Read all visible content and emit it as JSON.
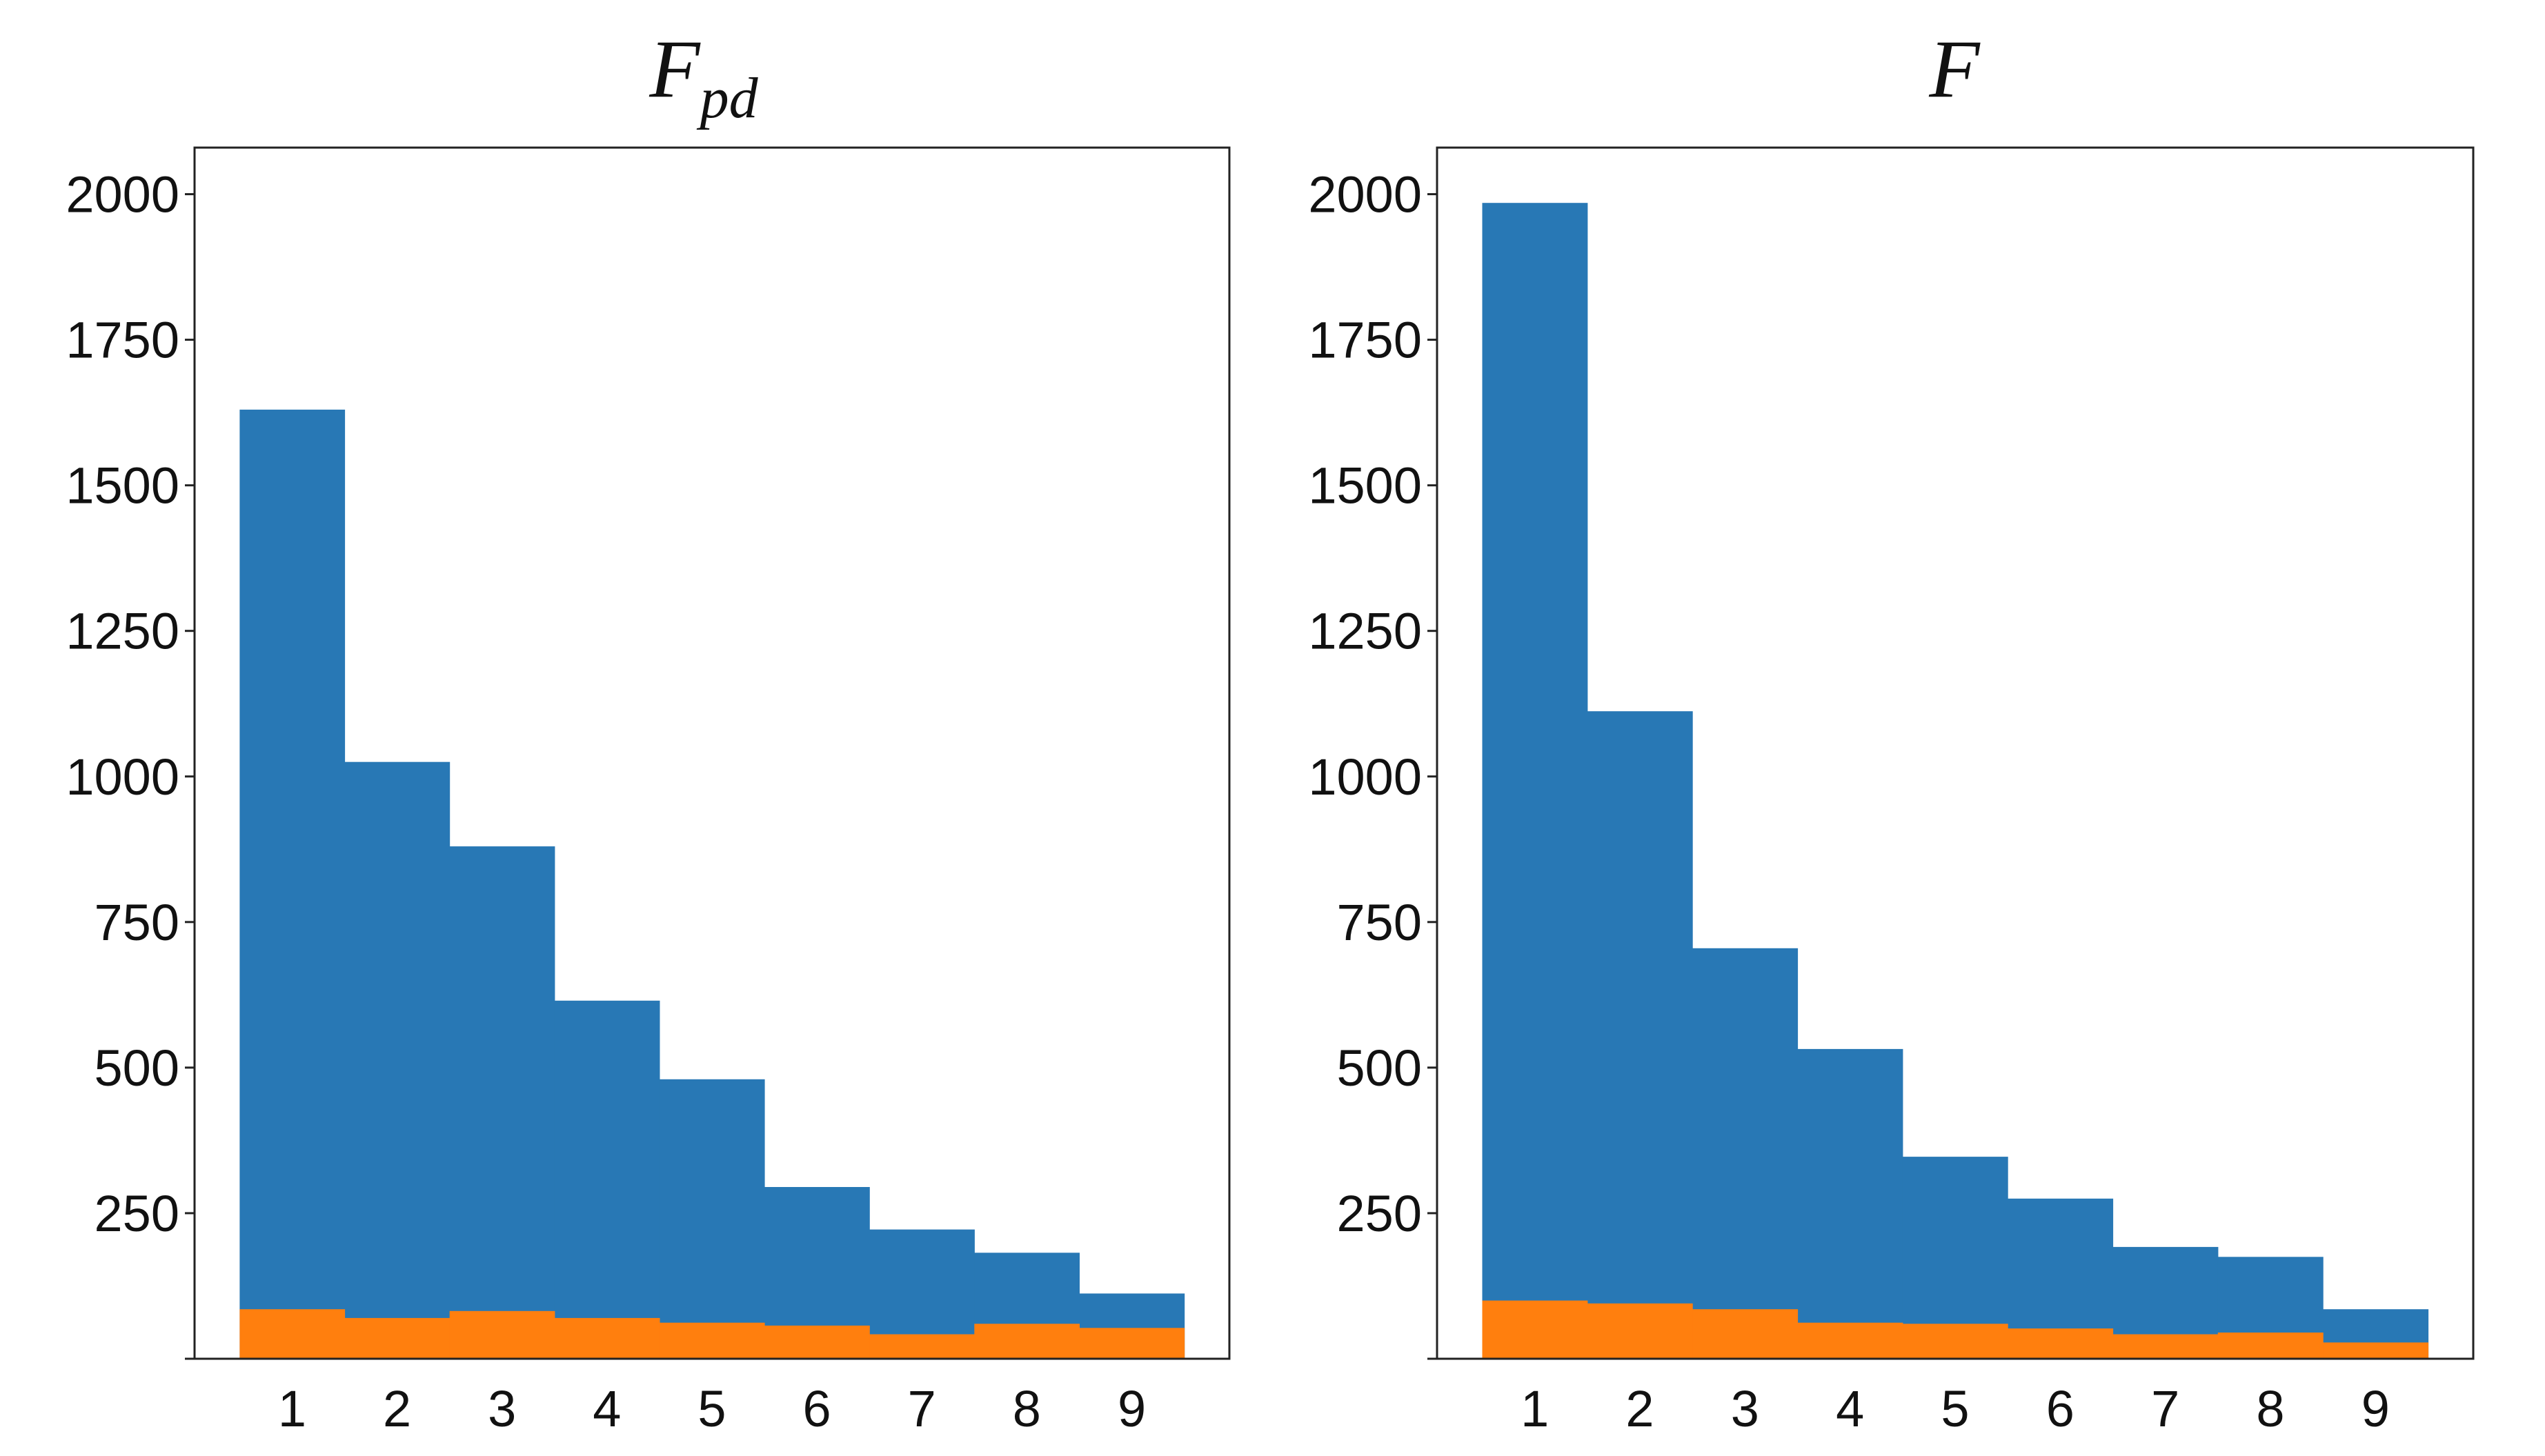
{
  "chart_data": [
    {
      "type": "bar",
      "stacking": "overlaid",
      "title": "F",
      "title_subscript": "pd",
      "xlabel": "",
      "ylabel": "",
      "categories": [
        "1",
        "2",
        "3",
        "4",
        "5",
        "6",
        "7",
        "8",
        "9"
      ],
      "xticks": [
        "1",
        "2",
        "3",
        "4",
        "5",
        "6",
        "7",
        "8",
        "9"
      ],
      "yticks": [
        "250",
        "500",
        "750",
        "1000",
        "1250",
        "1500",
        "1750",
        "2000"
      ],
      "ylim": [
        0,
        2080
      ],
      "grid": false,
      "series": [
        {
          "color": "#2878b5",
          "values": [
            1630,
            1025,
            880,
            615,
            480,
            295,
            222,
            182,
            112
          ]
        },
        {
          "color": "#ff7f0e",
          "values": [
            85,
            70,
            82,
            70,
            62,
            57,
            42,
            60,
            53
          ]
        }
      ]
    },
    {
      "type": "bar",
      "stacking": "overlaid",
      "title": "F",
      "title_subscript": "",
      "xlabel": "",
      "ylabel": "",
      "categories": [
        "1",
        "2",
        "3",
        "4",
        "5",
        "6",
        "7",
        "8",
        "9"
      ],
      "xticks": [
        "1",
        "2",
        "3",
        "4",
        "5",
        "6",
        "7",
        "8",
        "9"
      ],
      "yticks": [
        "250",
        "500",
        "750",
        "1000",
        "1250",
        "1500",
        "1750",
        "2000"
      ],
      "ylim": [
        0,
        2080
      ],
      "grid": false,
      "series": [
        {
          "color": "#2878b5",
          "values": [
            1985,
            1112,
            705,
            532,
            347,
            275,
            192,
            175,
            85
          ]
        },
        {
          "color": "#ff7f0e",
          "values": [
            100,
            95,
            85,
            62,
            60,
            52,
            42,
            45,
            28
          ]
        }
      ]
    }
  ]
}
